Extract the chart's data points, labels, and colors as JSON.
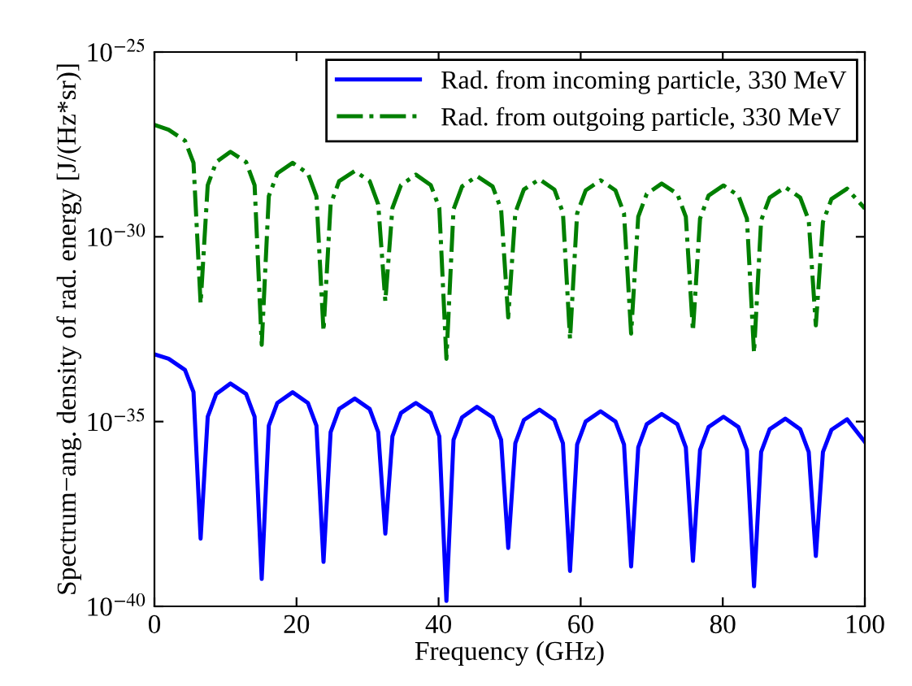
{
  "chart_data": {
    "type": "line",
    "xlabel": "Frequency (GHz)",
    "ylabel": "Spectrum−ang. density of rad. energy [J/(Hz*sr)]",
    "x": [
      0,
      2,
      4.3,
      5.5,
      6.5,
      7.5,
      8.7,
      10.7,
      12.9,
      14.1,
      15.1,
      16.1,
      17.3,
      19.45,
      21.6,
      22.8,
      23.8,
      24.8,
      26.0,
      28.2,
      30.3,
      31.5,
      32.5,
      33.5,
      34.7,
      36.8,
      38.9,
      40.1,
      41.1,
      42.1,
      43.3,
      45.4,
      47.6,
      48.8,
      49.8,
      50.8,
      52.0,
      54.2,
      56.3,
      57.5,
      58.5,
      59.5,
      60.7,
      62.8,
      64.9,
      66.1,
      67.1,
      68.1,
      69.3,
      71.4,
      73.6,
      74.8,
      75.8,
      76.8,
      78.0,
      80.1,
      82.2,
      83.4,
      84.4,
      85.4,
      86.6,
      88.8,
      90.9,
      92.1,
      93.1,
      94.1,
      95.3,
      97.5,
      100
    ],
    "series": [
      {
        "name": "Rad. from incoming particle, 330 MeV",
        "color": "#0000ff",
        "line_style": "solid",
        "values": [
          6.6e-34,
          5e-34,
          2.5e-34,
          6.3e-35,
          6.8e-39,
          1.35e-35,
          5.6e-35,
          1.07e-34,
          5.6e-35,
          1.35e-35,
          5.5e-40,
          7.8e-36,
          3.2e-35,
          6.2e-35,
          3.2e-35,
          7.8e-36,
          1.6e-39,
          5.2e-36,
          2.2e-35,
          4.2e-35,
          2.2e-35,
          5.2e-36,
          9.3e-39,
          4e-36,
          1.7e-35,
          3.2e-35,
          1.7e-35,
          4e-36,
          1.4e-40,
          3.2e-36,
          1.3e-35,
          2.5e-35,
          1.3e-35,
          3.2e-36,
          3.8e-39,
          2.6e-36,
          1.1e-35,
          2.1e-35,
          1.1e-35,
          2.6e-36,
          9.1e-40,
          2.4e-36,
          1e-35,
          1.9e-35,
          1e-35,
          2.4e-36,
          1.2e-39,
          2e-36,
          8.5e-36,
          1.6e-35,
          8.5e-36,
          2e-36,
          1.7e-39,
          1.7e-36,
          7.1e-36,
          1.35e-35,
          7.1e-36,
          1.7e-36,
          3.5e-40,
          1.5e-36,
          6.2e-36,
          1.2e-35,
          6.2e-36,
          1.5e-36,
          2.3e-39,
          1.5e-36,
          6e-36,
          1.15e-35,
          2.8e-36
        ]
      },
      {
        "name": "Rad. from outgoing particle, 330 MeV",
        "color": "#007f00",
        "line_style": "dashdot",
        "values": [
          1.07e-27,
          7.9e-28,
          4e-28,
          1e-28,
          1.55e-32,
          2.5e-29,
          1.05e-28,
          2e-28,
          1.05e-28,
          2.5e-29,
          1.2e-33,
          1.26e-29,
          5.2e-29,
          1e-28,
          5.2e-29,
          1.26e-29,
          2.8e-33,
          7.6e-30,
          3.2e-29,
          6e-29,
          3.2e-29,
          7.6e-30,
          1.8e-32,
          6e-30,
          2.5e-29,
          4.8e-29,
          2.5e-29,
          6e-30,
          5e-34,
          5.5e-30,
          2.3e-29,
          4.4e-29,
          2.3e-29,
          5.5e-30,
          6.6e-33,
          4.5e-30,
          1.9e-29,
          3.6e-29,
          1.9e-29,
          4.5e-30,
          1.7e-33,
          4.3e-30,
          1.8e-29,
          3.4e-29,
          1.8e-29,
          4.3e-30,
          2.4e-33,
          3.5e-30,
          1.45e-29,
          2.75e-29,
          1.45e-29,
          3.5e-30,
          2.8e-33,
          3.1e-30,
          1.3e-29,
          2.45e-29,
          1.3e-29,
          3.1e-30,
          7.2e-34,
          2.8e-30,
          1.15e-29,
          2.2e-29,
          1.15e-29,
          2.8e-30,
          4e-33,
          2.5e-30,
          1.05e-29,
          2e-29,
          5.8e-30
        ]
      }
    ],
    "log": "y",
    "xlim": [
      0,
      100
    ],
    "xticks": [
      0,
      20,
      40,
      60,
      80,
      100
    ],
    "ylim": [
      1e-40,
      1e-25
    ],
    "yticks": [
      {
        "value": 1e-40,
        "label": "10$^{−40}$"
      },
      {
        "value": 1e-35,
        "label": "10$^{−35}$"
      },
      {
        "value": 1e-30,
        "label": "10$^{−30}$"
      },
      {
        "value": 1e-25,
        "label": "10$^{−25}$"
      }
    ],
    "grid": false,
    "legend": "top right",
    "marker": "none"
  }
}
